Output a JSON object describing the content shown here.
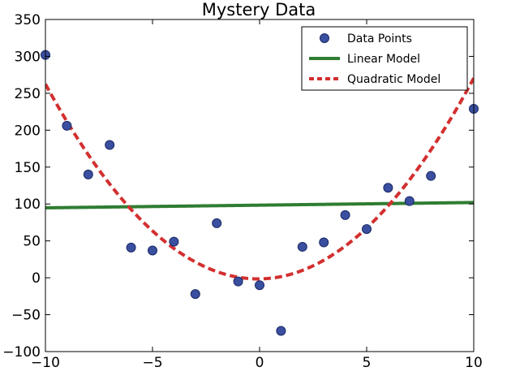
{
  "chart_data": {
    "type": "scatter",
    "title": "Mystery Data",
    "xlabel": "",
    "ylabel": "",
    "xlim": [
      -10,
      10
    ],
    "ylim": [
      -100,
      350
    ],
    "xticks": [
      -10,
      -5,
      0,
      5,
      10
    ],
    "xtick_labels": [
      "−10",
      "−5",
      "0",
      "5",
      "10"
    ],
    "yticks": [
      -100,
      -50,
      0,
      50,
      100,
      150,
      200,
      250,
      300,
      350
    ],
    "ytick_labels": [
      "−100",
      "−50",
      "0",
      "50",
      "100",
      "150",
      "200",
      "250",
      "300",
      "350"
    ],
    "grid": false,
    "legend_position": "top-right",
    "series": [
      {
        "name": "Data Points",
        "kind": "scatter",
        "color": "#3b4fa0",
        "x": [
          -10,
          -9,
          -8,
          -7,
          -6,
          -5,
          -4,
          -3,
          -2,
          -1,
          0,
          1,
          2,
          3,
          4,
          5,
          6,
          7,
          8,
          10
        ],
        "y": [
          302,
          206,
          140,
          180,
          41,
          37,
          49,
          -22,
          74,
          -5,
          -10,
          -72,
          42,
          48,
          85,
          66,
          122,
          104,
          138,
          229
        ]
      },
      {
        "name": "Linear Model",
        "kind": "line",
        "color": "#2e7d32",
        "style": "solid",
        "intercept": 98.4,
        "slope": 0.36
      },
      {
        "name": "Quadratic Model",
        "kind": "line",
        "color": "#d32f2f",
        "style": "dashed",
        "a": 2.68,
        "b": 0.4,
        "c": -1.5
      }
    ]
  }
}
